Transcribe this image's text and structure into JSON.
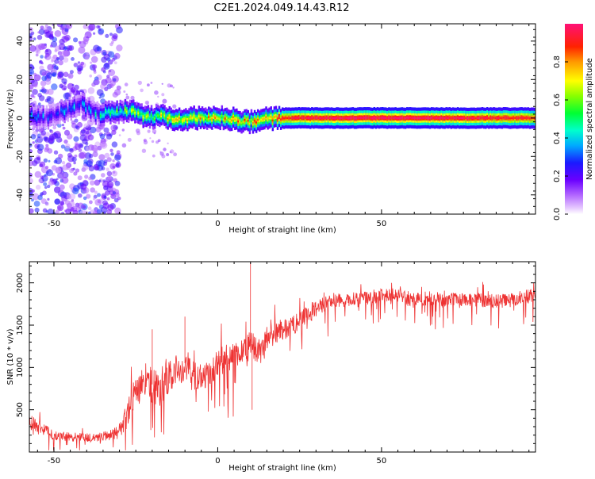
{
  "figure_title": "C2E1.2024.049.14.43.R12",
  "chart_data": [
    {
      "type": "heatmap",
      "name": "spectrogram",
      "xlabel": "Height of straight line (km)",
      "ylabel": "Frequency (Hz)",
      "xlim": [
        -57.5,
        97
      ],
      "ylim": [
        -50,
        49
      ],
      "xticks": [
        -50,
        0,
        50
      ],
      "xtick_labels": [
        "-50",
        "0",
        "50"
      ],
      "yticks": [
        -40,
        -20,
        0,
        20,
        40
      ],
      "ytick_labels": [
        "-40",
        "-20",
        "0",
        "20",
        "40"
      ],
      "colorbar": {
        "label": "Normalized spectral amplitude",
        "range": [
          0.0,
          1.0
        ],
        "ticks": [
          0.0,
          0.2,
          0.4,
          0.6,
          0.8
        ],
        "tick_labels": [
          "0.0",
          "0.2",
          "0.4",
          "0.6",
          "0.8"
        ],
        "colormap": "rainbow (white-violet-blue-cyan-green-yellow-red-magenta)"
      },
      "ridge": {
        "description": "dominant Doppler line near 0 Hz",
        "x": [
          -57,
          -52,
          -47,
          -42,
          -37,
          -32,
          -27,
          -22,
          -17,
          -12,
          -7,
          -2,
          3,
          8,
          13,
          18,
          25,
          40,
          60,
          80,
          96
        ],
        "y": [
          1,
          0,
          4,
          7,
          2,
          3,
          4,
          0,
          1,
          -1,
          0,
          0,
          0,
          -2,
          -1,
          0,
          0,
          0,
          0,
          0,
          0
        ],
        "amplitude": [
          0.3,
          0.3,
          0.3,
          0.3,
          0.35,
          0.5,
          0.55,
          0.6,
          0.65,
          0.7,
          0.72,
          0.75,
          0.75,
          0.75,
          0.8,
          0.85,
          0.95,
          1.0,
          1.0,
          0.95,
          0.9
        ]
      },
      "noise": {
        "description": "scattered low-amplitude speckle below about -30 km",
        "x_range": [
          -57.5,
          -30
        ],
        "y_range": [
          -50,
          49
        ],
        "amplitude_range": [
          0.05,
          0.3
        ]
      }
    },
    {
      "type": "line",
      "name": "snr",
      "xlabel": "Height of straight line (km)",
      "ylabel": "SNR (10 * v/v)",
      "xlim": [
        -57.5,
        97
      ],
      "ylim": [
        0,
        2250
      ],
      "xticks": [
        -50,
        0,
        50
      ],
      "xtick_labels": [
        "-50",
        "0",
        "50"
      ],
      "yticks": [
        500,
        1000,
        1500,
        2000
      ],
      "ytick_labels": [
        "500",
        "1000",
        "1500",
        "2000"
      ],
      "color": "#ee3333",
      "series": [
        {
          "name": "SNR",
          "x": [
            -57,
            -55,
            -50,
            -45,
            -40,
            -35,
            -32,
            -30,
            -28,
            -25,
            -22,
            -20,
            -18,
            -15,
            -12,
            -10,
            -8,
            -5,
            -2,
            0,
            2,
            5,
            8,
            10,
            13,
            15,
            20,
            25,
            28,
            30,
            33,
            35,
            40,
            45,
            50,
            55,
            60,
            65,
            70,
            75,
            80,
            85,
            90,
            96
          ],
          "y": [
            350,
            300,
            200,
            180,
            170,
            180,
            200,
            250,
            400,
            700,
            900,
            800,
            700,
            900,
            1000,
            1050,
            900,
            900,
            950,
            1050,
            1100,
            1150,
            1200,
            1300,
            1150,
            1350,
            1450,
            1550,
            1650,
            1700,
            1750,
            1800,
            1800,
            1820,
            1850,
            1850,
            1800,
            1820,
            1800,
            1800,
            1800,
            1780,
            1800,
            1850
          ],
          "noise_amplitude": [
            150,
            150,
            100,
            90,
            90,
            100,
            120,
            150,
            250,
            350,
            400,
            400,
            350,
            350,
            350,
            350,
            300,
            280,
            280,
            280,
            280,
            260,
            260,
            260,
            240,
            240,
            220,
            200,
            180,
            160,
            150,
            140,
            140,
            140,
            140,
            140,
            140,
            140,
            140,
            140,
            140,
            140,
            140,
            140
          ]
        }
      ]
    }
  ]
}
